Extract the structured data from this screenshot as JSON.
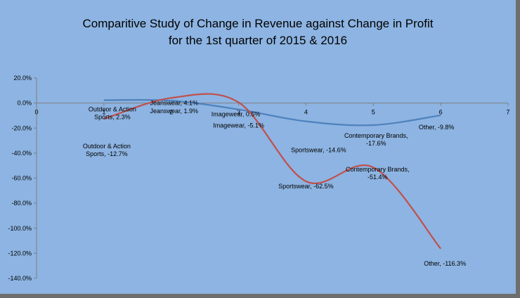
{
  "chart_data": {
    "type": "scatter",
    "title_line1": "Comparitive Study of Change in Revenue against Change in Profit",
    "title_line2": "for the 1st quarter of 2015 & 2016",
    "xlim": [
      0,
      7
    ],
    "ylim": [
      -140,
      20
    ],
    "x_ticks": [
      "0",
      "1",
      "2",
      "3",
      "4",
      "5",
      "6",
      "7"
    ],
    "y_ticks": [
      "20.0%",
      "0.0%",
      "-20.0%",
      "-40.0%",
      "-60.0%",
      "-80.0%",
      "-100.0%",
      "-120.0%",
      "-140.0%"
    ],
    "grid": false,
    "smooth": true,
    "series": [
      {
        "color": "#4f81bd",
        "x": [
          1,
          2,
          3,
          4,
          5,
          6
        ],
        "y": [
          2.3,
          1.9,
          -5.1,
          -14.6,
          -17.6,
          -9.8
        ],
        "labels": [
          "Outdoor & Action Sports, 2.3%",
          "Jeanswear, 1.9%",
          "Imagewear, -5.1%",
          "Sportswear, -14.6%",
          "Contemporary Brands, -17.6%",
          "Other, -9.8%"
        ]
      },
      {
        "color": "#c0504d",
        "x": [
          1,
          2,
          3,
          4,
          5,
          6
        ],
        "y": [
          -12.7,
          4.1,
          0.5,
          -62.5,
          -51.4,
          -116.3
        ],
        "labels": [
          "Outdoor & Action Sports, -12.7%",
          "Jeanswear, 4.1%",
          "Imagewear, 0.5%",
          "Sportswear, -62.5%",
          "Contemporary Brands, -51.4%",
          "Other, -116.3%"
        ]
      }
    ]
  }
}
